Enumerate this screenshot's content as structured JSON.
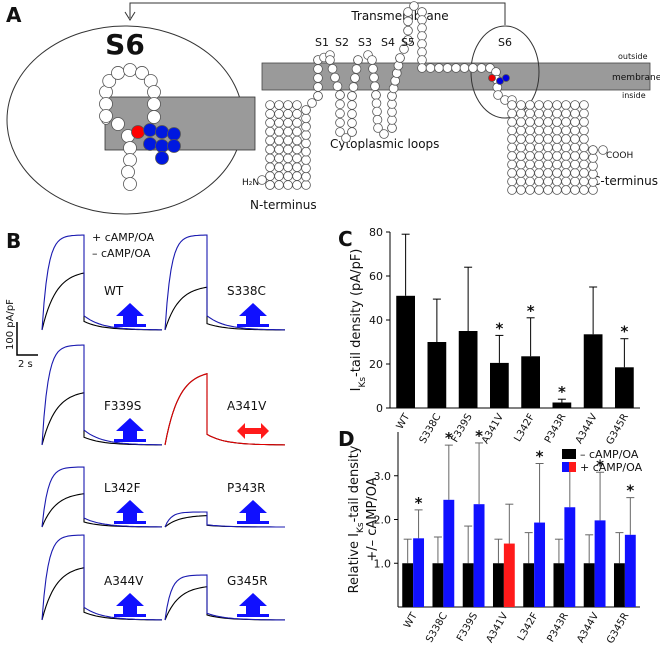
{
  "panel_a": {
    "label": "A",
    "zoom_title": "S6",
    "transmembrane": "Transmembrane",
    "segments": [
      "S1",
      "S2",
      "S3",
      "S4",
      "S5",
      "S6"
    ],
    "outside": "outside",
    "membrane": "membrane",
    "inside": "inside",
    "cytoplasmic_loops": "Cytoplasmic loops",
    "cooh": "COOH",
    "c_terminus": "C-terminus",
    "h2n": "H₂N",
    "n_terminus": "N-terminus"
  },
  "panel_b": {
    "label": "B",
    "legend": [
      "+ cAMP/OA",
      "– cAMP/OA"
    ],
    "scale_y": "100 pA/pF",
    "scale_x": "2 s",
    "cells": [
      "WT",
      "S338C",
      "F339S",
      "A341V",
      "L342F",
      "P343R",
      "A344V",
      "G345R"
    ]
  },
  "chart_data": [
    {
      "type": "bar",
      "label": "C",
      "categories": [
        "WT",
        "S338C",
        "F339S",
        "A341V",
        "L342F",
        "P343R",
        "A344V",
        "G345R"
      ],
      "values": [
        51,
        30,
        35,
        20.5,
        23.5,
        2.5,
        33.5,
        18.5
      ],
      "errors": [
        28,
        19.5,
        29,
        12.5,
        17.5,
        1.5,
        21.5,
        13
      ],
      "color": "#000000",
      "significance": [
        null,
        null,
        null,
        "*",
        "*",
        "*",
        null,
        "*"
      ],
      "ylabel": [
        "I",
        "Ks",
        "-tail density (pA/pF)"
      ],
      "ylim": [
        0,
        80
      ],
      "yticks": [
        0,
        20,
        40,
        60,
        80
      ]
    },
    {
      "type": "grouped_bar",
      "label": "D",
      "categories": [
        "WT",
        "S338C",
        "F339S",
        "A341V",
        "L342F",
        "P343R",
        "A344V",
        "G345R"
      ],
      "series": [
        {
          "name": "– cAMP/OA",
          "color": "#000000",
          "values": [
            1,
            1,
            1,
            1,
            1,
            1,
            1,
            1
          ],
          "errors": [
            0.55,
            0.6,
            0.85,
            0.55,
            0.7,
            0.55,
            0.65,
            0.7
          ]
        },
        {
          "name": "+ cAMP/OA",
          "colors": [
            "#1010ff",
            "#1010ff",
            "#1010ff",
            "#ff1a1a",
            "#1010ff",
            "#1010ff",
            "#1010ff",
            "#1010ff"
          ],
          "values": [
            1.57,
            2.45,
            2.35,
            1.45,
            1.93,
            2.28,
            1.98,
            1.65
          ],
          "errors": [
            0.65,
            1.25,
            1.4,
            0.9,
            1.35,
            1.0,
            1.1,
            0.85
          ]
        }
      ],
      "significance": [
        "*",
        "*",
        "*",
        null,
        "*",
        "*",
        "*",
        "*"
      ],
      "ylabel": [
        [
          "Relative ",
          "I",
          "Ks",
          "-tail density"
        ],
        [
          "+/– cAMP/OA"
        ]
      ],
      "ylim": [
        0,
        4
      ],
      "yticks": [
        {
          "value": 1,
          "label": "1.0"
        },
        {
          "value": 2,
          "label": "2.0"
        },
        {
          "value": 3,
          "label": "3.0"
        }
      ],
      "legend": "top-right"
    }
  ]
}
